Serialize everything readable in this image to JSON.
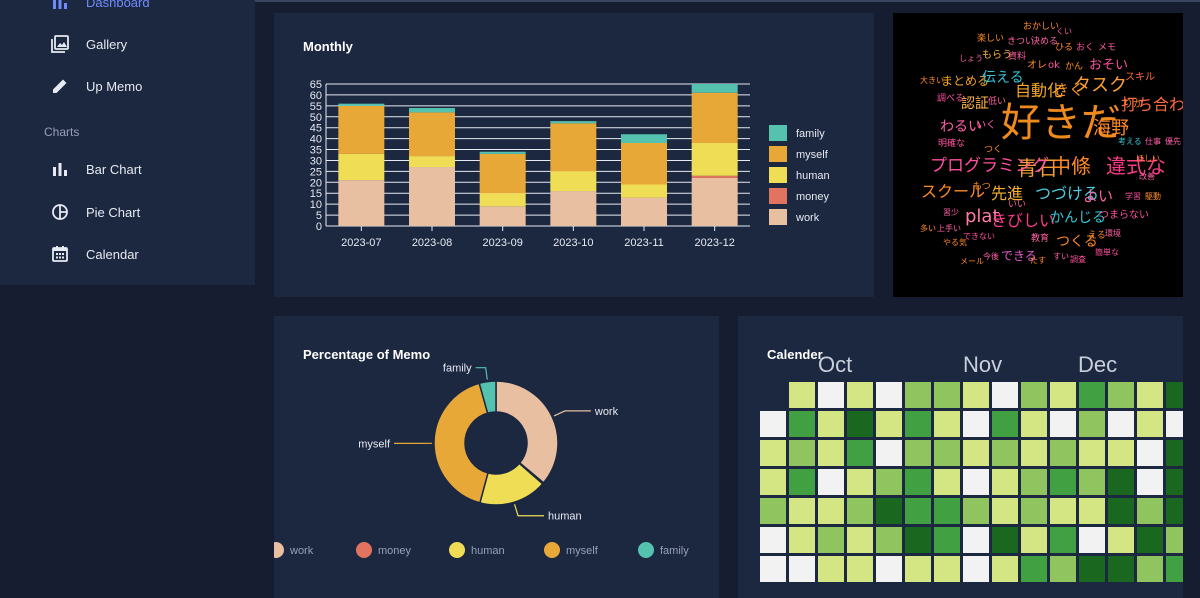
{
  "sidebar": {
    "items": [
      {
        "label": "Dashboard",
        "icon": "bar-chart-icon"
      },
      {
        "label": "Gallery",
        "icon": "gallery-icon"
      },
      {
        "label": "Up Memo",
        "icon": "pencil-icon"
      }
    ],
    "section": "Charts",
    "chart_items": [
      {
        "label": "Bar Chart",
        "icon": "bar-chart-icon"
      },
      {
        "label": "Pie Chart",
        "icon": "pie-chart-icon"
      },
      {
        "label": "Calendar",
        "icon": "calendar-icon"
      }
    ],
    "active_color": "#6f8cff"
  },
  "panels": {
    "monthly_title": "Monthly",
    "percentage_title": "Percentage of Memo",
    "calendar_title": "Calender"
  },
  "colors": {
    "work": "#e8bfa0",
    "money": "#e2735e",
    "human": "#efde55",
    "myself": "#e8a838",
    "family": "#55c2b0"
  },
  "chart_data": [
    {
      "type": "bar",
      "title": "Monthly",
      "categories": [
        "2023-07",
        "2023-08",
        "2023-09",
        "2023-10",
        "2023-11",
        "2023-12"
      ],
      "series": [
        {
          "name": "work",
          "values": [
            21,
            27,
            9,
            16,
            13,
            22
          ]
        },
        {
          "name": "money",
          "values": [
            0,
            0,
            0,
            0,
            0,
            1
          ]
        },
        {
          "name": "human",
          "values": [
            12,
            5,
            6,
            9,
            6,
            15
          ]
        },
        {
          "name": "myself",
          "values": [
            22,
            20,
            18,
            22,
            19,
            23
          ]
        },
        {
          "name": "family",
          "values": [
            1,
            2,
            1,
            1,
            4,
            4
          ]
        }
      ],
      "yticks": [
        0,
        5,
        10,
        15,
        20,
        25,
        30,
        35,
        40,
        45,
        50,
        55,
        60,
        65
      ],
      "ylim": [
        0,
        65
      ],
      "stacked": true,
      "legend_order": [
        "family",
        "myself",
        "human",
        "money",
        "work"
      ],
      "legend": "right"
    },
    {
      "type": "pie",
      "title": "Percentage of Memo",
      "donut": true,
      "slices": [
        {
          "name": "work",
          "value": 108
        },
        {
          "name": "money",
          "value": 1
        },
        {
          "name": "human",
          "value": 53
        },
        {
          "name": "myself",
          "value": 124
        },
        {
          "name": "family",
          "value": 13
        }
      ],
      "legend": "bottom"
    },
    {
      "type": "heatmap",
      "title": "Calender",
      "month_labels": [
        "Oct",
        "Nov",
        "Dec"
      ],
      "levels": [
        "#f2f2f2",
        "#d4e583",
        "#8fc45f",
        "#41a042",
        "#1a6820"
      ],
      "weeks": [
        [
          null,
          0,
          1,
          1,
          2,
          0,
          0
        ],
        [
          1,
          3,
          2,
          3,
          1,
          1,
          0
        ],
        [
          0,
          1,
          1,
          0,
          1,
          2,
          1
        ],
        [
          1,
          4,
          3,
          1,
          2,
          1,
          1
        ],
        [
          0,
          1,
          0,
          2,
          4,
          2,
          0
        ],
        [
          2,
          3,
          2,
          3,
          3,
          4,
          1
        ],
        [
          2,
          1,
          2,
          1,
          3,
          3,
          1
        ],
        [
          1,
          0,
          1,
          0,
          2,
          0,
          0
        ],
        [
          0,
          3,
          2,
          1,
          1,
          4,
          1
        ],
        [
          2,
          1,
          1,
          2,
          2,
          1,
          3
        ],
        [
          1,
          0,
          2,
          3,
          1,
          3,
          2
        ],
        [
          3,
          2,
          1,
          2,
          1,
          0,
          4
        ],
        [
          2,
          0,
          1,
          4,
          4,
          1,
          4
        ],
        [
          1,
          1,
          0,
          0,
          2,
          4,
          2
        ],
        [
          4,
          0,
          4,
          4,
          4,
          2,
          3
        ]
      ]
    }
  ],
  "wordcloud": {
    "words": [
      {
        "t": "好きだ",
        "c": "#f08a1c"
      },
      {
        "t": "違式な",
        "c": "#ff3b8a"
      },
      {
        "t": "中條",
        "c": "#ff8a24"
      },
      {
        "t": "青石",
        "c": "#f2a035"
      },
      {
        "t": "プログラミング",
        "c": "#ff4fa0"
      },
      {
        "t": "自動化",
        "c": "#f5a623"
      },
      {
        "t": "きく",
        "c": "#f0932b"
      },
      {
        "t": "タスク",
        "c": "#ffa030"
      },
      {
        "t": "海野",
        "c": "#ff8a24"
      },
      {
        "t": "打ち合わせ",
        "c": "#ff6a40"
      },
      {
        "t": "スクール",
        "c": "#ff8a24"
      },
      {
        "t": "先進",
        "c": "#f5b02f"
      },
      {
        "t": "つづける",
        "c": "#4cc9e0"
      },
      {
        "t": "よい",
        "c": "#ff5fa5"
      },
      {
        "t": "plat",
        "c": "#ff7aa8"
      },
      {
        "t": "きびしい",
        "c": "#ff3b8a"
      },
      {
        "t": "かんじる",
        "c": "#34c6d6"
      },
      {
        "t": "つまらない",
        "c": "#ff4fa0"
      },
      {
        "t": "つくる",
        "c": "#ff8a24"
      },
      {
        "t": "できる",
        "c": "#e45ad0"
      },
      {
        "t": "わるい",
        "c": "#ff5fa5"
      },
      {
        "t": "まとめる",
        "c": "#f5a623"
      },
      {
        "t": "伝える",
        "c": "#34c6d6"
      },
      {
        "t": "認証",
        "c": "#ffb347"
      },
      {
        "t": "おそい",
        "c": "#ff4fa0"
      },
      {
        "t": "スキル",
        "c": "#ff6a40"
      },
      {
        "t": "資料",
        "c": "#ff5fa5"
      },
      {
        "t": "もらう",
        "c": "#ffb347"
      },
      {
        "t": "楽しい",
        "c": "#ff8a24"
      },
      {
        "t": "きつい",
        "c": "#ff5fa5"
      },
      {
        "t": "決める",
        "c": "#ff5fa5"
      },
      {
        "t": "おかしい",
        "c": "#ff8a24"
      },
      {
        "t": "くい",
        "c": "#ff5fa5"
      },
      {
        "t": "ひる",
        "c": "#ff8a24"
      },
      {
        "t": "おく",
        "c": "#ff4fa0"
      },
      {
        "t": "メモ",
        "c": "#ff5fa5"
      },
      {
        "t": "オレ",
        "c": "#ff8a24"
      },
      {
        "t": "ok",
        "c": "#ff4fa0"
      },
      {
        "t": "かん",
        "c": "#ff8a24"
      },
      {
        "t": "しょう",
        "c": "#ff5fa5"
      },
      {
        "t": "大きい",
        "c": "#ff8a24"
      },
      {
        "t": "調べる",
        "c": "#ff4fa0"
      },
      {
        "t": "低い",
        "c": "#ff5fa5"
      },
      {
        "t": "りか",
        "c": "#ff8a24"
      },
      {
        "t": "いく",
        "c": "#ff5fa5"
      },
      {
        "t": "明確な",
        "c": "#ff4fa0"
      },
      {
        "t": "つく",
        "c": "#ff8a24"
      },
      {
        "t": "考える",
        "c": "#34c6d6"
      },
      {
        "t": "仕事",
        "c": "#ff5fa5"
      },
      {
        "t": "優先",
        "c": "#ff5fa5"
      },
      {
        "t": "ほしい",
        "c": "#ff8a24"
      },
      {
        "t": "改善",
        "c": "#ff5fa5"
      },
      {
        "t": "もつ",
        "c": "#ff8a24"
      },
      {
        "t": "いい",
        "c": "#ff5fa5"
      },
      {
        "t": "学習",
        "c": "#ff4fa0"
      },
      {
        "t": "駆動",
        "c": "#ff8a24"
      },
      {
        "t": "習少",
        "c": "#ff5fa5"
      },
      {
        "t": "多い",
        "c": "#ff8a24"
      },
      {
        "t": "上手い",
        "c": "#ff5fa5"
      },
      {
        "t": "できない",
        "c": "#ff4fa0"
      },
      {
        "t": "やる気",
        "c": "#ff8a24"
      },
      {
        "t": "教育",
        "c": "#ff5fa5"
      },
      {
        "t": "える",
        "c": "#ff8a24"
      },
      {
        "t": "環境",
        "c": "#ff5fa5"
      },
      {
        "t": "簡単な",
        "c": "#ff4fa0"
      },
      {
        "t": "メール",
        "c": "#ff8a24"
      },
      {
        "t": "今後",
        "c": "#ff5fa5"
      },
      {
        "t": "たす",
        "c": "#ff8a24"
      },
      {
        "t": "すい",
        "c": "#ff5fa5"
      },
      {
        "t": "調査",
        "c": "#ff4fa0"
      }
    ]
  }
}
